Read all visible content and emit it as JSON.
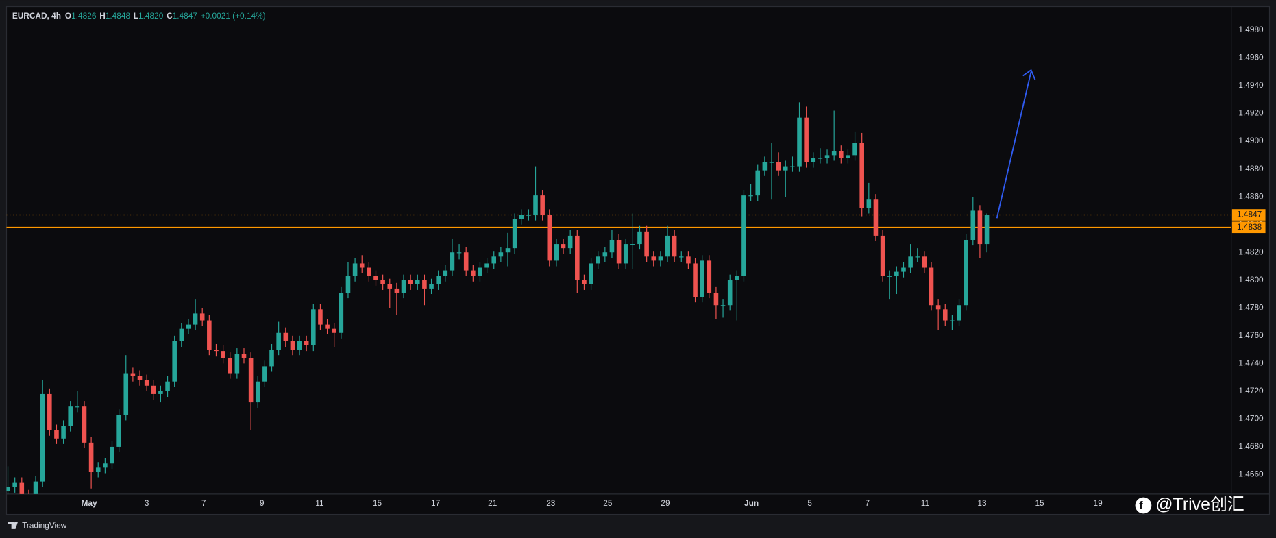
{
  "chart_data": {
    "type": "candlestick",
    "header": {
      "symbol": "EURCAD, 4h",
      "fields": [
        {
          "label": "O",
          "value": "1.4826"
        },
        {
          "label": "H",
          "value": "1.4848"
        },
        {
          "label": "L",
          "value": "1.4820"
        },
        {
          "label": "C",
          "value": "1.4847"
        }
      ],
      "change": "+0.0021 (+0.14%)"
    },
    "up_color": "#26a69a",
    "down_color": "#ef5350",
    "open": [
      1.4648,
      1.4651,
      1.4654,
      1.4645,
      1.4643,
      1.4655,
      1.4718,
      1.4692,
      1.4686,
      1.4695,
      1.4709,
      1.4709,
      1.4683,
      1.4662,
      1.4665,
      1.4668,
      1.468,
      1.4703,
      1.4733,
      1.4731,
      1.4728,
      1.4724,
      1.4718,
      1.472,
      1.4727,
      1.4756,
      1.4765,
      1.4768,
      1.4776,
      1.4771,
      1.475,
      1.4749,
      1.4744,
      1.4733,
      1.4747,
      1.4744,
      1.4712,
      1.4727,
      1.4738,
      1.475,
      1.4762,
      1.4756,
      1.475,
      1.4756,
      1.4753,
      1.4779,
      1.4768,
      1.4765,
      1.4762,
      1.4791,
      1.4803,
      1.4812,
      1.4809,
      1.4803,
      1.48,
      1.4797,
      1.4794,
      1.4791,
      1.48,
      1.4797,
      1.48,
      1.4794,
      1.4797,
      1.4803,
      1.4807,
      1.482,
      1.482,
      1.4807,
      1.4803,
      1.4809,
      1.4812,
      1.4817,
      1.482,
      1.4823,
      1.4844,
      1.4847,
      1.4847,
      1.4861,
      1.4847,
      1.4814,
      1.4826,
      1.4823,
      1.4832,
      1.48,
      1.4797,
      1.4812,
      1.4817,
      1.482,
      1.4829,
      1.4812,
      1.4826,
      1.4826,
      1.4835,
      1.4817,
      1.4814,
      1.4817,
      1.4832,
      1.4817,
      1.4817,
      1.4812,
      1.4788,
      1.4814,
      1.4791,
      1.4782,
      1.4782,
      1.48,
      1.4803,
      1.4861,
      1.4861,
      1.4879,
      1.4885,
      1.4885,
      1.4879,
      1.4882,
      1.4882,
      1.4917,
      1.4885,
      1.4888,
      1.4888,
      1.489,
      1.4893,
      1.4888,
      1.489,
      1.4899,
      1.4852,
      1.4858,
      1.4832,
      1.4803,
      1.4803,
      1.4806,
      1.4809,
      1.4817,
      1.4817,
      1.4809,
      1.4782,
      1.4779,
      1.4771,
      1.4771,
      1.4782,
      1.4829,
      1.485,
      1.4826
    ],
    "high": [
      1.4666,
      1.4658,
      1.4658,
      1.4649,
      1.4659,
      1.4728,
      1.4722,
      1.4696,
      1.4699,
      1.4713,
      1.472,
      1.4713,
      1.4687,
      1.4669,
      1.4672,
      1.4684,
      1.4707,
      1.4746,
      1.4737,
      1.4735,
      1.4732,
      1.4728,
      1.4724,
      1.4731,
      1.476,
      1.4769,
      1.4772,
      1.4786,
      1.478,
      1.4775,
      1.4754,
      1.4753,
      1.4748,
      1.4751,
      1.4751,
      1.4748,
      1.4731,
      1.4742,
      1.4754,
      1.477,
      1.4766,
      1.476,
      1.476,
      1.476,
      1.4783,
      1.4783,
      1.4772,
      1.4769,
      1.4795,
      1.4813,
      1.4816,
      1.4818,
      1.4813,
      1.4807,
      1.4804,
      1.4801,
      1.4798,
      1.4804,
      1.4804,
      1.4804,
      1.4804,
      1.4801,
      1.4807,
      1.4811,
      1.483,
      1.4826,
      1.4824,
      1.4811,
      1.4813,
      1.4816,
      1.4821,
      1.4824,
      1.4834,
      1.4848,
      1.4851,
      1.4851,
      1.4882,
      1.4865,
      1.4851,
      1.483,
      1.483,
      1.4836,
      1.4836,
      1.4804,
      1.4816,
      1.4821,
      1.4824,
      1.4836,
      1.4833,
      1.483,
      1.4848,
      1.4839,
      1.4839,
      1.4821,
      1.4821,
      1.4839,
      1.4836,
      1.4821,
      1.4821,
      1.4816,
      1.4818,
      1.4818,
      1.4795,
      1.4786,
      1.4804,
      1.4807,
      1.4865,
      1.4869,
      1.4883,
      1.4889,
      1.4899,
      1.4892,
      1.4886,
      1.4889,
      1.4928,
      1.4925,
      1.4892,
      1.4895,
      1.4894,
      1.4922,
      1.4897,
      1.4894,
      1.4907,
      1.4906,
      1.487,
      1.4862,
      1.4836,
      1.4807,
      1.481,
      1.4813,
      1.4826,
      1.4823,
      1.4821,
      1.4813,
      1.4786,
      1.4783,
      1.4775,
      1.4786,
      1.4833,
      1.486,
      1.4854,
      1.4848
    ],
    "low": [
      1.4644,
      1.4647,
      1.4641,
      1.4639,
      1.4639,
      1.4651,
      1.4688,
      1.4682,
      1.4682,
      1.4691,
      1.4705,
      1.4679,
      1.465,
      1.4658,
      1.4661,
      1.4664,
      1.4676,
      1.4699,
      1.4727,
      1.4724,
      1.472,
      1.4714,
      1.4712,
      1.4716,
      1.4723,
      1.4752,
      1.4761,
      1.4764,
      1.4767,
      1.4746,
      1.4745,
      1.474,
      1.4729,
      1.4729,
      1.474,
      1.4692,
      1.4708,
      1.4723,
      1.4734,
      1.4746,
      1.4752,
      1.4746,
      1.4746,
      1.4749,
      1.4749,
      1.4764,
      1.4761,
      1.4752,
      1.4758,
      1.4787,
      1.4799,
      1.4805,
      1.4799,
      1.4796,
      1.4793,
      1.478,
      1.4775,
      1.4787,
      1.4793,
      1.4793,
      1.4782,
      1.479,
      1.4793,
      1.4799,
      1.4803,
      1.4815,
      1.4803,
      1.4799,
      1.4799,
      1.4805,
      1.4808,
      1.4813,
      1.481,
      1.4819,
      1.484,
      1.4843,
      1.4843,
      1.4843,
      1.481,
      1.481,
      1.4819,
      1.4819,
      1.4791,
      1.4793,
      1.4793,
      1.4808,
      1.4813,
      1.4816,
      1.4808,
      1.4808,
      1.4808,
      1.4822,
      1.4813,
      1.481,
      1.481,
      1.4813,
      1.4813,
      1.4813,
      1.4808,
      1.4784,
      1.4784,
      1.4787,
      1.4772,
      1.4773,
      1.4778,
      1.4771,
      1.4799,
      1.4857,
      1.4857,
      1.4875,
      1.4858,
      1.4875,
      1.486,
      1.4878,
      1.4878,
      1.4881,
      1.4881,
      1.4884,
      1.4884,
      1.4886,
      1.4884,
      1.4884,
      1.4886,
      1.4846,
      1.4848,
      1.4828,
      1.4799,
      1.4786,
      1.479,
      1.4802,
      1.4805,
      1.4813,
      1.4805,
      1.4778,
      1.4764,
      1.4767,
      1.4764,
      1.4767,
      1.4778,
      1.4825,
      1.4816,
      1.482
    ],
    "close": [
      1.4651,
      1.4654,
      1.4645,
      1.4643,
      1.4655,
      1.4718,
      1.4692,
      1.4686,
      1.4695,
      1.4709,
      1.4709,
      1.4683,
      1.4662,
      1.4665,
      1.4668,
      1.468,
      1.4703,
      1.4733,
      1.4731,
      1.4728,
      1.4724,
      1.4718,
      1.472,
      1.4727,
      1.4756,
      1.4765,
      1.4768,
      1.4776,
      1.4771,
      1.475,
      1.4749,
      1.4744,
      1.4733,
      1.4747,
      1.4744,
      1.4712,
      1.4727,
      1.4738,
      1.475,
      1.4762,
      1.4756,
      1.475,
      1.4756,
      1.4753,
      1.4779,
      1.4768,
      1.4765,
      1.4762,
      1.4791,
      1.4803,
      1.4812,
      1.4809,
      1.4803,
      1.48,
      1.4797,
      1.4794,
      1.4791,
      1.48,
      1.4797,
      1.48,
      1.4794,
      1.4797,
      1.4803,
      1.4807,
      1.482,
      1.482,
      1.4807,
      1.4803,
      1.4809,
      1.4812,
      1.4817,
      1.482,
      1.4823,
      1.4844,
      1.4847,
      1.4847,
      1.4861,
      1.4847,
      1.4814,
      1.4826,
      1.4823,
      1.4832,
      1.48,
      1.4797,
      1.4812,
      1.4817,
      1.482,
      1.4829,
      1.4812,
      1.4826,
      1.4826,
      1.4835,
      1.4817,
      1.4814,
      1.4817,
      1.4832,
      1.4817,
      1.4817,
      1.4812,
      1.4788,
      1.4814,
      1.4791,
      1.4782,
      1.4782,
      1.48,
      1.4803,
      1.4861,
      1.4861,
      1.4879,
      1.4885,
      1.4885,
      1.4879,
      1.4882,
      1.4882,
      1.4917,
      1.4885,
      1.4888,
      1.4888,
      1.489,
      1.4893,
      1.4888,
      1.489,
      1.4899,
      1.4852,
      1.4858,
      1.4832,
      1.4803,
      1.4803,
      1.4806,
      1.4809,
      1.4817,
      1.4817,
      1.4809,
      1.4782,
      1.4779,
      1.4771,
      1.4771,
      1.4782,
      1.4829,
      1.485,
      1.4826,
      1.4847
    ],
    "xlim": [
      -0.2,
      176.2
    ],
    "xticks": [
      {
        "value": 11.7,
        "label": "May"
      },
      {
        "value": 20.0,
        "label": "3"
      },
      {
        "value": 28.2,
        "label": "7"
      },
      {
        "value": 36.6,
        "label": "9"
      },
      {
        "value": 44.9,
        "label": "11"
      },
      {
        "value": 53.2,
        "label": "15"
      },
      {
        "value": 61.6,
        "label": "17"
      },
      {
        "value": 69.8,
        "label": "21"
      },
      {
        "value": 78.2,
        "label": "23"
      },
      {
        "value": 86.4,
        "label": "25"
      },
      {
        "value": 94.7,
        "label": "29"
      },
      {
        "value": 107.1,
        "label": "Jun"
      },
      {
        "value": 115.5,
        "label": "5"
      },
      {
        "value": 123.8,
        "label": "7"
      },
      {
        "value": 132.1,
        "label": "11"
      },
      {
        "value": 140.3,
        "label": "13"
      },
      {
        "value": 148.6,
        "label": "15"
      },
      {
        "value": 157.0,
        "label": "19"
      }
    ],
    "ylim": [
      1.4646,
      1.4997
    ],
    "yticks": [
      {
        "value": 1.466,
        "label": "1.4660"
      },
      {
        "value": 1.468,
        "label": "1.4680"
      },
      {
        "value": 1.47,
        "label": "1.4700"
      },
      {
        "value": 1.472,
        "label": "1.4720"
      },
      {
        "value": 1.474,
        "label": "1.4740"
      },
      {
        "value": 1.476,
        "label": "1.4760"
      },
      {
        "value": 1.478,
        "label": "1.4780"
      },
      {
        "value": 1.48,
        "label": "1.4800"
      },
      {
        "value": 1.482,
        "label": "1.4820"
      },
      {
        "value": 1.484,
        "label": "1.4840"
      },
      {
        "value": 1.486,
        "label": "1.4860"
      },
      {
        "value": 1.488,
        "label": "1.4880"
      },
      {
        "value": 1.49,
        "label": "1.4900"
      },
      {
        "value": 1.492,
        "label": "1.4920"
      },
      {
        "value": 1.494,
        "label": "1.4940"
      },
      {
        "value": 1.496,
        "label": "1.4960"
      },
      {
        "value": 1.498,
        "label": "1.4980"
      }
    ],
    "grid": false,
    "last_price": 1.4847,
    "line_price": 1.4838,
    "line_color": "#ff9800"
  },
  "watermark": "@Trive创汇",
  "brand": "TradingView"
}
